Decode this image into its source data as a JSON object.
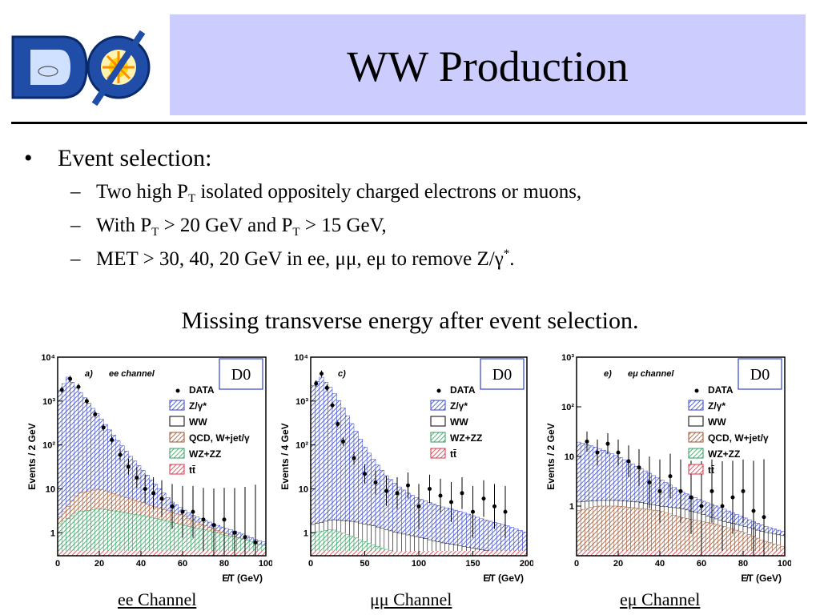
{
  "slide": {
    "title": "WW Production",
    "logo_text": "DØ",
    "bullet": "Event selection:",
    "subitems": [
      {
        "pre": "Two high P",
        "sub": "T",
        "post": " isolated oppositely charged electrons or muons,"
      },
      {
        "pre": "With P",
        "sub": "T",
        "mid": " > 20 GeV and P",
        "sub2": "T",
        "post": " > 15 GeV,"
      },
      {
        "pre": "MET > 30, 40, 20 GeV  in ee, μμ, eμ to remove Z/γ",
        "sup": "*",
        "post": "."
      }
    ],
    "caption": "Missing transverse energy after event selection.",
    "channels": [
      "ee Channel",
      "μμ Channel",
      "eμ Channel"
    ]
  },
  "colors": {
    "title_bg": "#ccccff",
    "z_gamma": "#3344cc",
    "ww": "#000000",
    "qcd": "#a0522d",
    "wz_zz": "#2e9e5b",
    "ttbar": "#dd3344"
  },
  "chart_data": [
    {
      "type": "bar",
      "panel_label": "a)",
      "channel_label": "ee channel",
      "badge": "D0",
      "xlabel": "E̸T (GeV)",
      "ylabel": "Events / 2 GeV",
      "xlim": [
        0,
        100
      ],
      "ylim": [
        0.3,
        10000
      ],
      "log_y": true,
      "xticks": [
        "0",
        "20",
        "40",
        "60",
        "80",
        "100"
      ],
      "yticks": [
        "1",
        "10",
        "10²",
        "10³",
        "10⁴"
      ],
      "legend": [
        "DATA",
        "Z/γ*",
        "WW",
        "QCD, W+jet/γ",
        "WZ+ZZ",
        "tt̄"
      ],
      "series": [
        {
          "name": "Z/γ*",
          "x": [
            0,
            5,
            10,
            15,
            20,
            25,
            30,
            35,
            40,
            45,
            50,
            55,
            60,
            65,
            70,
            75,
            80,
            85,
            90,
            95,
            100
          ],
          "values": [
            1500,
            3500,
            1800,
            900,
            450,
            220,
            110,
            55,
            30,
            16,
            9,
            5,
            3.5,
            2.5,
            2,
            1.6,
            1.3,
            1.1,
            0.9,
            0.7,
            0.6
          ]
        },
        {
          "name": "QCD, W+jet/γ",
          "x": [
            0,
            10,
            20,
            30,
            40,
            50,
            60,
            70,
            80,
            90,
            100
          ],
          "values": [
            2,
            8,
            10,
            7,
            5,
            3.5,
            2.5,
            1.5,
            1,
            0.7,
            0.5
          ]
        },
        {
          "name": "WZ+ZZ",
          "x": [
            0,
            10,
            20,
            30,
            40,
            50,
            60,
            70,
            80,
            90,
            100
          ],
          "values": [
            1.5,
            3,
            3.5,
            3,
            2.5,
            2,
            1.5,
            1.2,
            0.9,
            0.7,
            0.5
          ]
        },
        {
          "name": "DATA",
          "x": [
            2,
            6,
            10,
            14,
            18,
            22,
            26,
            30,
            34,
            38,
            42,
            46,
            50,
            55,
            60,
            65,
            70,
            75,
            80,
            85,
            90,
            95
          ],
          "values": [
            1800,
            3200,
            2100,
            1000,
            500,
            250,
            130,
            60,
            32,
            18,
            10,
            8,
            6,
            4,
            3,
            3,
            2,
            1.5,
            2,
            1,
            0.8,
            0.6
          ]
        }
      ]
    },
    {
      "type": "bar",
      "panel_label": "c)",
      "channel_label": "",
      "badge": "D0",
      "xlabel": "E̸T  (GeV)",
      "ylabel": "Events / 4 GeV",
      "xlim": [
        0,
        200
      ],
      "ylim": [
        0.3,
        10000
      ],
      "log_y": true,
      "xticks": [
        "0",
        "50",
        "100",
        "150",
        "200"
      ],
      "yticks": [
        "1",
        "10",
        "10²",
        "10³",
        "10⁴"
      ],
      "legend": [
        "DATA",
        "Z/γ*",
        "WW",
        "WZ+ZZ",
        "tt̄"
      ],
      "series": [
        {
          "name": "Z/γ*",
          "x": [
            0,
            10,
            20,
            30,
            40,
            50,
            60,
            70,
            80,
            90,
            100,
            120,
            140,
            160,
            180,
            200
          ],
          "values": [
            2000,
            3500,
            1800,
            700,
            250,
            90,
            40,
            20,
            12,
            8,
            6,
            4,
            3,
            2,
            1.5,
            1
          ]
        },
        {
          "name": "WW",
          "x": [
            0,
            20,
            40,
            60,
            80,
            100,
            120,
            140,
            160,
            180,
            200
          ],
          "values": [
            1.5,
            2,
            1.8,
            1.4,
            1,
            0.8,
            0.6,
            0.5,
            0.4,
            0.35,
            0.3
          ]
        },
        {
          "name": "WZ+ZZ",
          "x": [
            0,
            20,
            40,
            60,
            80,
            100
          ],
          "values": [
            1,
            1.2,
            0.8,
            0.5,
            0.35,
            0.3
          ]
        },
        {
          "name": "DATA",
          "x": [
            5,
            10,
            15,
            20,
            25,
            30,
            40,
            50,
            60,
            70,
            80,
            90,
            100,
            110,
            120,
            130,
            140,
            150,
            160,
            170,
            180
          ],
          "values": [
            2500,
            4200,
            2000,
            800,
            300,
            120,
            50,
            22,
            14,
            9,
            8,
            12,
            4,
            10,
            7,
            5,
            8,
            3,
            6,
            4,
            3
          ]
        }
      ]
    },
    {
      "type": "bar",
      "panel_label": "e)",
      "channel_label": "eμ channel",
      "badge": "D0",
      "xlabel": "E̸T (GeV)",
      "ylabel": "Events / 2 GeV",
      "xlim": [
        0,
        100
      ],
      "ylim": [
        0.1,
        1000
      ],
      "log_y": true,
      "xticks": [
        "0",
        "20",
        "40",
        "60",
        "80",
        "100"
      ],
      "yticks": [
        "1",
        "10",
        "10²",
        "10³"
      ],
      "legend": [
        "DATA",
        "Z/γ*",
        "WW",
        "QCD, W+jet/γ",
        "WZ+ZZ",
        "tt̄"
      ],
      "series": [
        {
          "name": "Z/γ*",
          "x": [
            0,
            10,
            20,
            30,
            40,
            50,
            60,
            70,
            80,
            90,
            100
          ],
          "values": [
            20,
            15,
            10,
            6,
            3.5,
            2,
            1.3,
            0.9,
            0.6,
            0.4,
            0.3
          ]
        },
        {
          "name": "WW",
          "x": [
            0,
            10,
            20,
            30,
            40,
            50,
            60,
            70,
            80,
            90,
            100
          ],
          "values": [
            1.2,
            1.3,
            1.3,
            1.2,
            1,
            0.9,
            0.7,
            0.5,
            0.4,
            0.3,
            0.25
          ]
        },
        {
          "name": "QCD, W+jet/γ",
          "x": [
            0,
            10,
            20,
            30,
            40,
            50,
            60,
            70,
            80,
            90,
            100
          ],
          "values": [
            0.8,
            1,
            1,
            0.9,
            0.8,
            0.6,
            0.5,
            0.4,
            0.3,
            0.2,
            0.15
          ]
        },
        {
          "name": "DATA",
          "x": [
            5,
            10,
            15,
            20,
            25,
            30,
            35,
            40,
            45,
            50,
            55,
            60,
            65,
            70,
            75,
            80,
            85,
            90
          ],
          "values": [
            20,
            12,
            18,
            12,
            8,
            6,
            3,
            2,
            4,
            2,
            1.5,
            1,
            2,
            1,
            1.5,
            2,
            0.8,
            0.6
          ]
        }
      ]
    }
  ]
}
